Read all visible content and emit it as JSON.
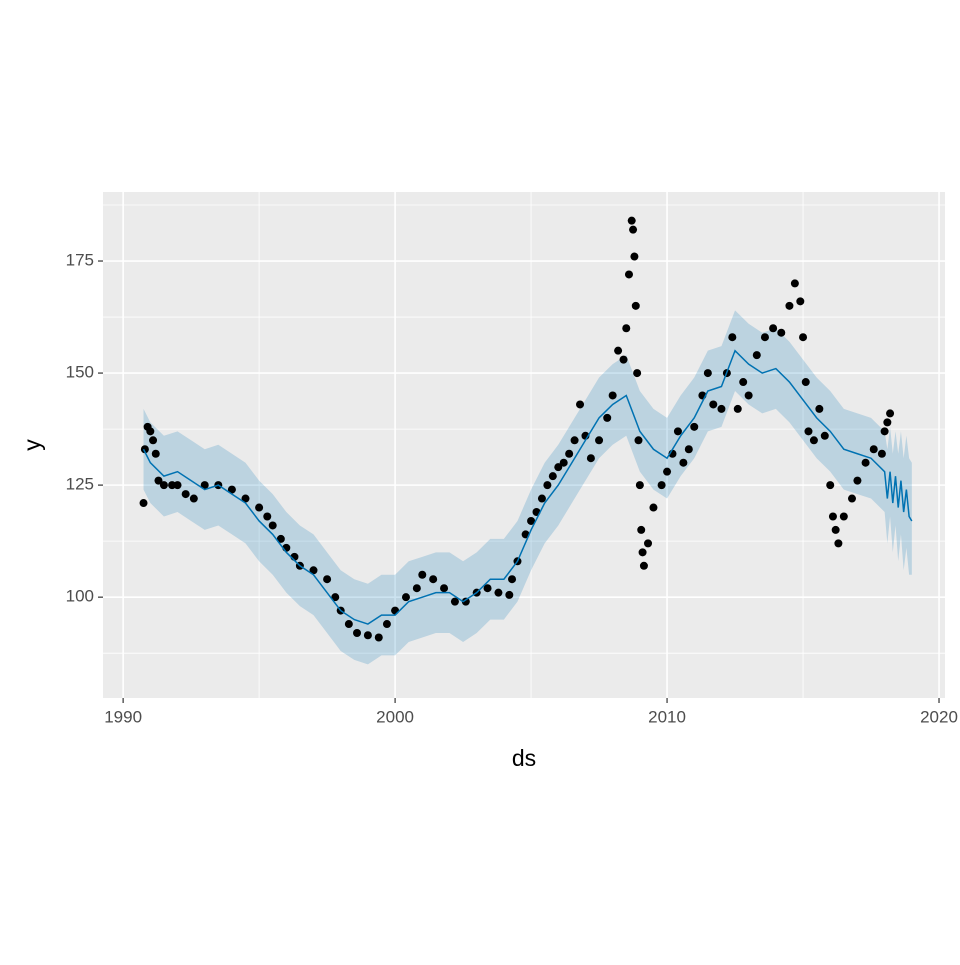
{
  "chart_data": {
    "type": "line",
    "x_label": "ds",
    "y_label": "y",
    "xlim": [
      1989.26,
      2020.22
    ],
    "ylim": [
      77.5,
      190.4
    ],
    "xticks": [
      1990,
      2000,
      2010,
      2020
    ],
    "yticks": [
      100,
      125,
      150,
      175
    ],
    "grid": true,
    "points": {
      "color": "#000000",
      "x": [
        1990.75,
        1990.8,
        1990.9,
        1991.0,
        1991.1,
        1991.2,
        1991.3,
        1991.5,
        1991.8,
        1992.0,
        1992.3,
        1992.6,
        1993.0,
        1993.5,
        1994.0,
        1994.5,
        1995.0,
        1995.3,
        1995.5,
        1995.8,
        1996.0,
        1996.3,
        1996.5,
        1997.0,
        1997.5,
        1997.8,
        1998.0,
        1998.3,
        1998.6,
        1999.0,
        1999.4,
        1999.7,
        2000.0,
        2000.4,
        2000.8,
        2001.0,
        2001.4,
        2001.8,
        2002.2,
        2002.6,
        2003.0,
        2003.4,
        2003.8,
        2004.2,
        2004.3,
        2004.5,
        2004.8,
        2005.0,
        2005.2,
        2005.4,
        2005.6,
        2005.8,
        2006.0,
        2006.2,
        2006.4,
        2006.6,
        2006.8,
        2007.0,
        2007.2,
        2007.5,
        2007.8,
        2008.0,
        2008.2,
        2008.4,
        2008.5,
        2008.6,
        2008.7,
        2008.75,
        2008.8,
        2008.85,
        2008.9,
        2008.95,
        2009.0,
        2009.05,
        2009.1,
        2009.15,
        2009.3,
        2009.5,
        2009.8,
        2010.0,
        2010.2,
        2010.4,
        2010.6,
        2010.8,
        2011.0,
        2011.3,
        2011.5,
        2011.7,
        2012.0,
        2012.2,
        2012.4,
        2012.6,
        2012.8,
        2013.0,
        2013.3,
        2013.6,
        2013.9,
        2014.2,
        2014.5,
        2014.7,
        2014.9,
        2015.0,
        2015.1,
        2015.2,
        2015.4,
        2015.6,
        2015.8,
        2016.0,
        2016.1,
        2016.2,
        2016.3,
        2016.5,
        2016.8,
        2017.0,
        2017.3,
        2017.6,
        2017.9,
        2018.0,
        2018.1,
        2018.2
      ],
      "y": [
        121,
        133,
        138,
        137,
        135,
        132,
        126,
        125,
        125,
        125,
        123,
        122,
        125,
        125,
        124,
        122,
        120,
        118,
        116,
        113,
        111,
        109,
        107,
        106,
        104,
        100,
        97,
        94,
        92,
        91.5,
        91,
        94,
        97,
        100,
        102,
        105,
        104,
        102,
        99,
        99,
        101,
        102,
        101,
        100.5,
        104,
        108,
        114,
        117,
        119,
        122,
        125,
        127,
        129,
        130,
        132,
        135,
        143,
        136,
        131,
        135,
        140,
        145,
        155,
        153,
        160,
        172,
        184,
        182,
        176,
        165,
        150,
        135,
        125,
        115,
        110,
        107,
        112,
        120,
        125,
        128,
        132,
        137,
        130,
        133,
        138,
        145,
        150,
        143,
        142,
        150,
        158,
        142,
        148,
        145,
        154,
        158,
        160,
        159,
        165,
        170,
        166,
        158,
        148,
        137,
        135,
        142,
        136,
        125,
        118,
        115,
        112,
        118,
        122,
        126,
        130,
        133,
        132,
        137,
        139,
        141
      ]
    },
    "forecast": {
      "color": "#0072b2",
      "band_color": "#0072b2",
      "x": [
        1990.75,
        1991,
        1991.5,
        1992,
        1992.5,
        1993,
        1993.5,
        1994,
        1994.5,
        1995,
        1995.5,
        1996,
        1996.5,
        1997,
        1997.5,
        1998,
        1998.5,
        1999,
        1999.5,
        2000,
        2000.5,
        2001,
        2001.5,
        2002,
        2002.5,
        2003,
        2003.5,
        2004,
        2004.5,
        2005,
        2005.5,
        2006,
        2006.5,
        2007,
        2007.5,
        2008,
        2008.5,
        2009,
        2009.5,
        2010,
        2010.5,
        2011,
        2011.5,
        2012,
        2012.5,
        2013,
        2013.5,
        2014,
        2014.5,
        2015,
        2015.5,
        2016,
        2016.5,
        2017,
        2017.5,
        2018,
        2018.1,
        2018.2,
        2018.3,
        2018.4,
        2018.5,
        2018.6,
        2018.7,
        2018.8,
        2018.9,
        2019.0
      ],
      "values": [
        133,
        130,
        127,
        128,
        126,
        124,
        125,
        123,
        121,
        117,
        114,
        110,
        107,
        105,
        101,
        97,
        95,
        94,
        96,
        96,
        99,
        100,
        101,
        101,
        99,
        101,
        104,
        104,
        108,
        115,
        121,
        125,
        130,
        135,
        140,
        143,
        145,
        137,
        133,
        131,
        136,
        140,
        146,
        147,
        155,
        152,
        150,
        151,
        148,
        144,
        140,
        137,
        133,
        132,
        131,
        128,
        122,
        128,
        121,
        127,
        120,
        126,
        119,
        124,
        118,
        117
      ],
      "lower": [
        124,
        121,
        118,
        119,
        117,
        115,
        116,
        114,
        112,
        108,
        105,
        101,
        98,
        96,
        92,
        88,
        86,
        85,
        87,
        87,
        90,
        91,
        92,
        92,
        90,
        92,
        95,
        95,
        99,
        106,
        112,
        116,
        121,
        126,
        131,
        134,
        136,
        128,
        124,
        122,
        127,
        131,
        137,
        138,
        146,
        143,
        141,
        142,
        139,
        135,
        131,
        128,
        124,
        123,
        122,
        119,
        112,
        118,
        110,
        116,
        108,
        114,
        106,
        111,
        105,
        105
      ],
      "upper": [
        142,
        139,
        136,
        137,
        135,
        133,
        134,
        132,
        130,
        126,
        123,
        119,
        116,
        114,
        110,
        106,
        104,
        103,
        105,
        105,
        108,
        109,
        110,
        110,
        108,
        110,
        113,
        113,
        117,
        124,
        130,
        134,
        139,
        144,
        149,
        152,
        154,
        146,
        142,
        140,
        145,
        149,
        155,
        156,
        164,
        161,
        159,
        160,
        157,
        153,
        149,
        146,
        142,
        141,
        140,
        137,
        133,
        138,
        132,
        137,
        132,
        137,
        131,
        136,
        131,
        130
      ]
    }
  }
}
